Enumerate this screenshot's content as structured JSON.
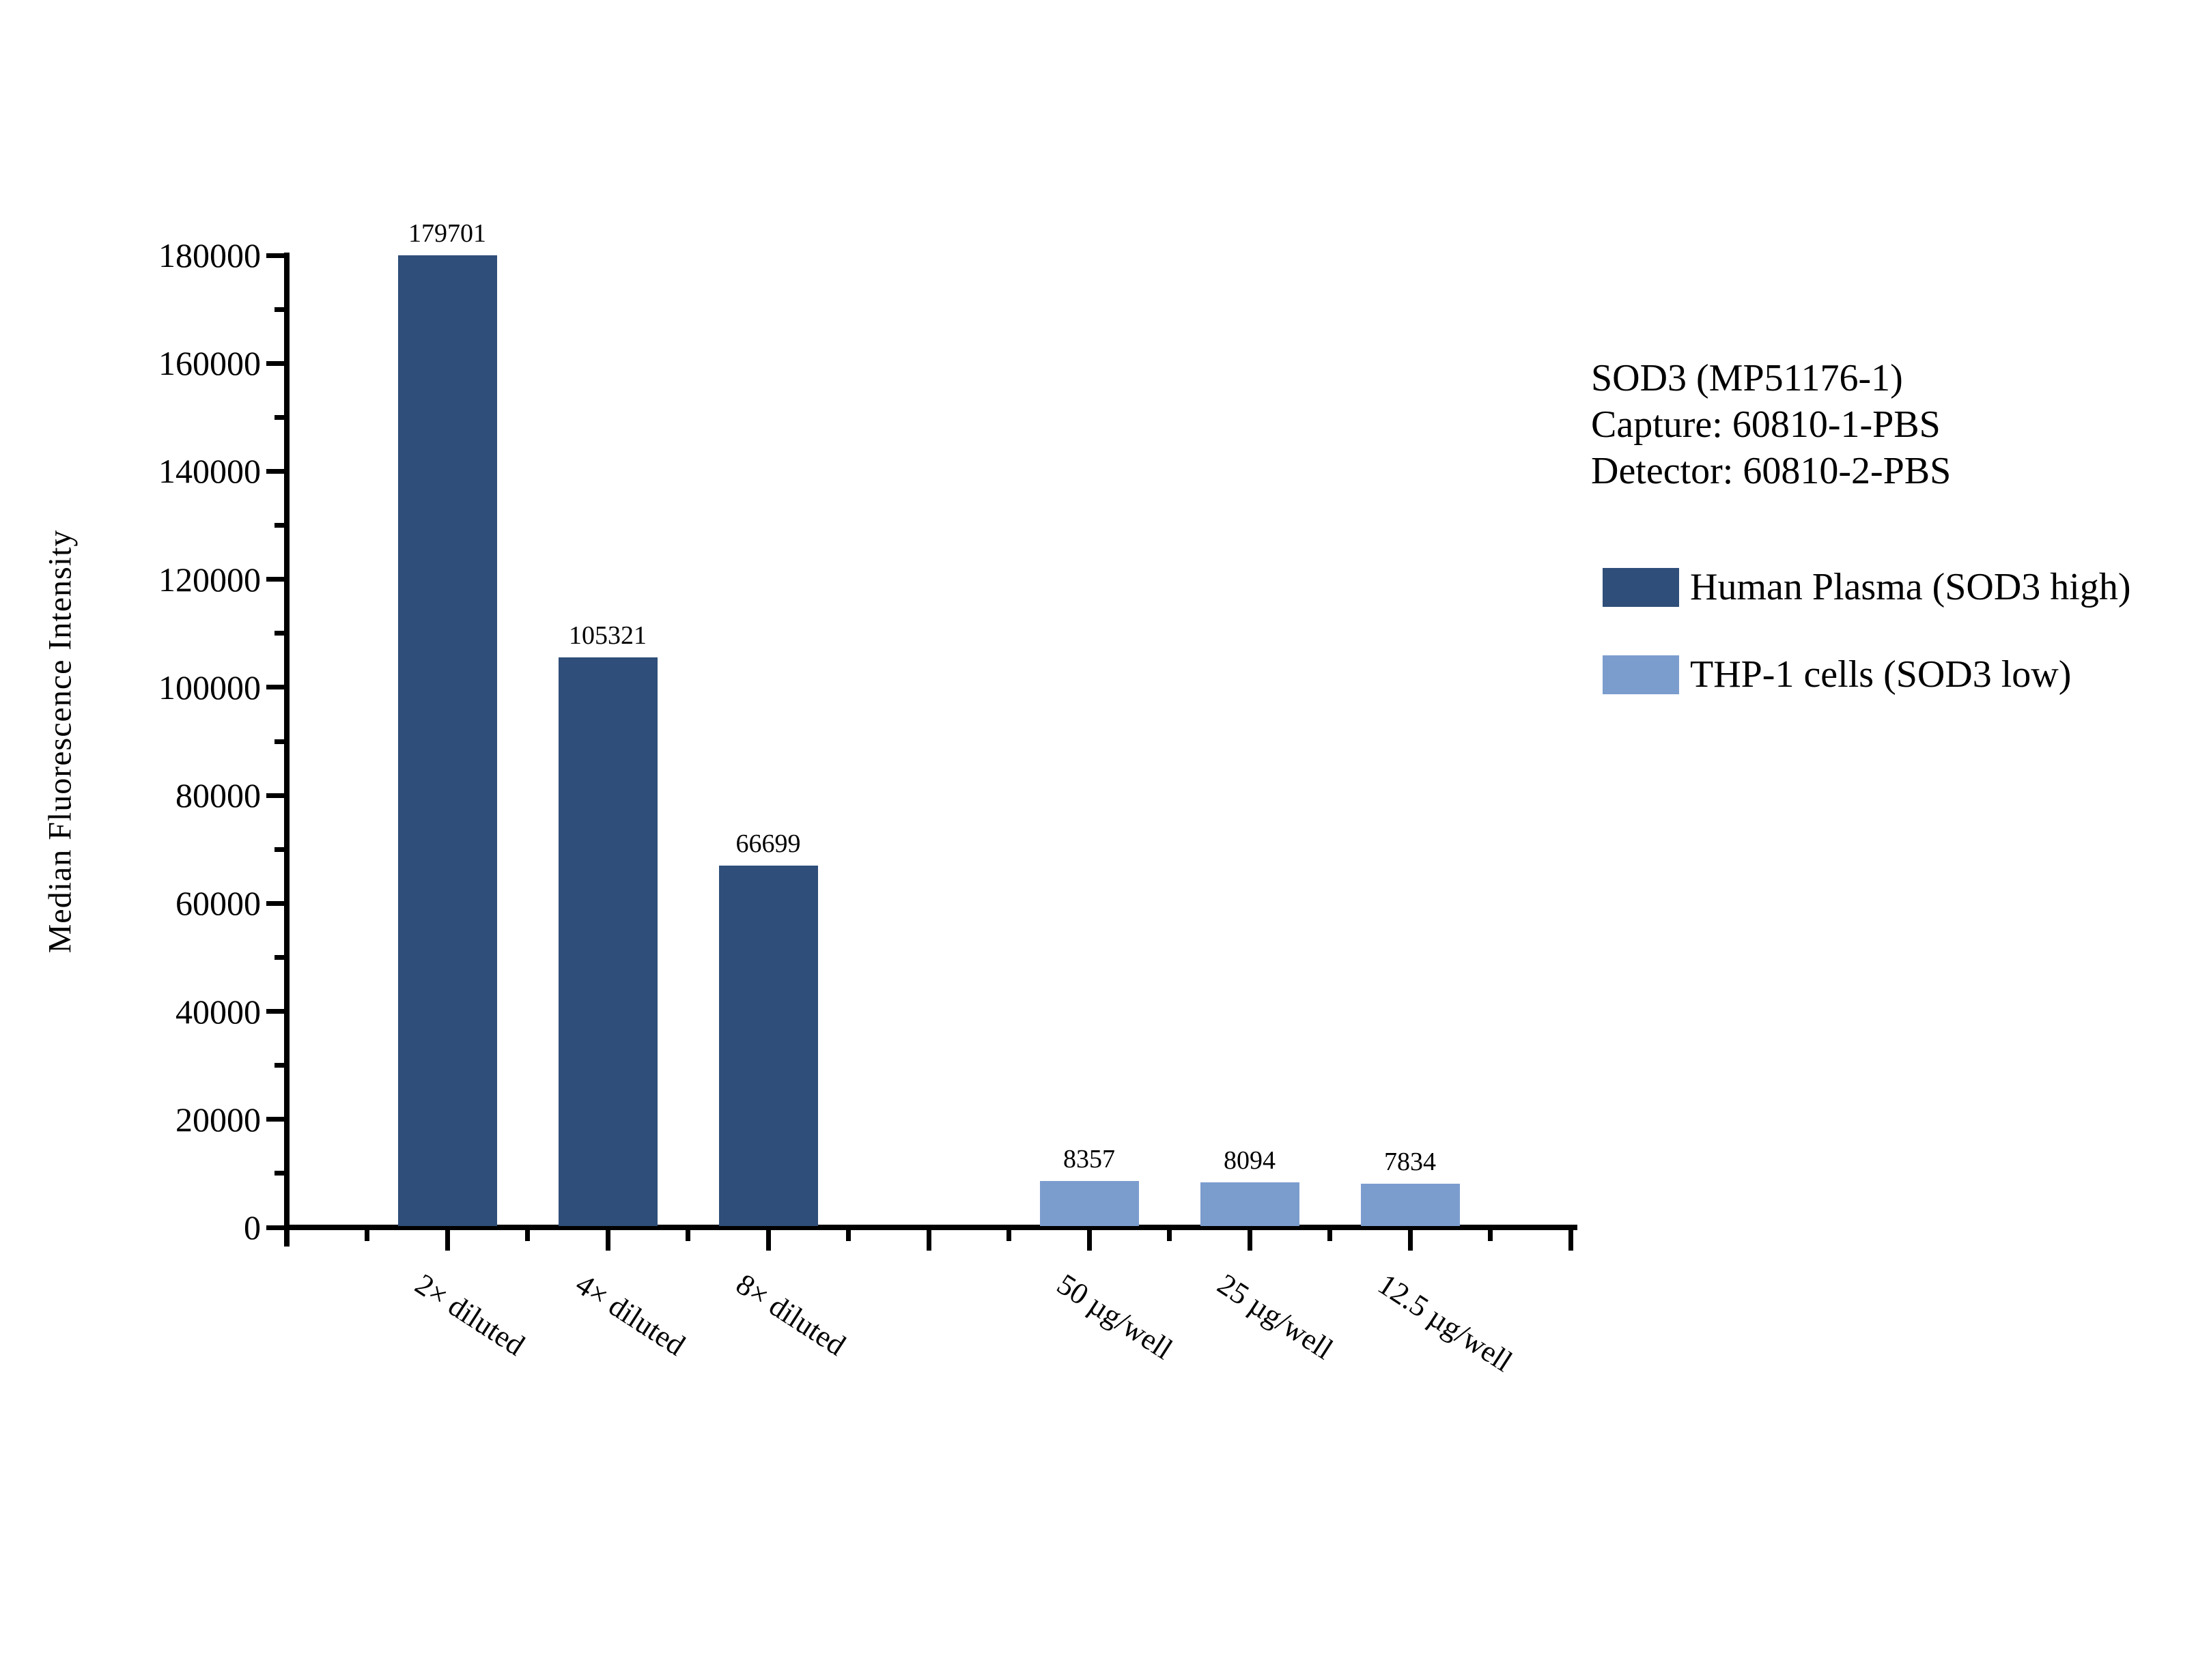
{
  "figure": {
    "background": "#ffffff"
  },
  "annotation": {
    "lines": [
      "SOD3 (MP51176-1)",
      "Capture: 60810-1-PBS",
      "Detector: 60810-2-PBS"
    ]
  },
  "legend": {
    "items": [
      {
        "label": "Human Plasma (SOD3 high)",
        "color": "#2F4E79"
      },
      {
        "label": "THP-1 cells (SOD3 low)",
        "color": "#7B9DCE"
      }
    ]
  },
  "chart_data": {
    "type": "bar",
    "title": "",
    "xlabel": "",
    "ylabel": "Median Fluorescence Intensity",
    "ylim": [
      0,
      180000
    ],
    "y_major_step": 20000,
    "y_minor_step": 10000,
    "grid": false,
    "legend_position": "right",
    "bar_value_labels": true,
    "categories": [
      "2× diluted",
      "4× diluted",
      "8× diluted",
      "50 µg/well",
      "25 µg/well",
      "12.5 µg/well"
    ],
    "series": [
      {
        "name": "Human Plasma (SOD3 high)",
        "color": "#2F4E79",
        "values": [
          179701,
          105321,
          66699,
          null,
          null,
          null
        ]
      },
      {
        "name": "THP-1 cells (SOD3 low)",
        "color": "#7B9DCE",
        "values": [
          null,
          null,
          null,
          8357,
          8094,
          7834
        ]
      }
    ],
    "group_gap_after_index": 2
  }
}
